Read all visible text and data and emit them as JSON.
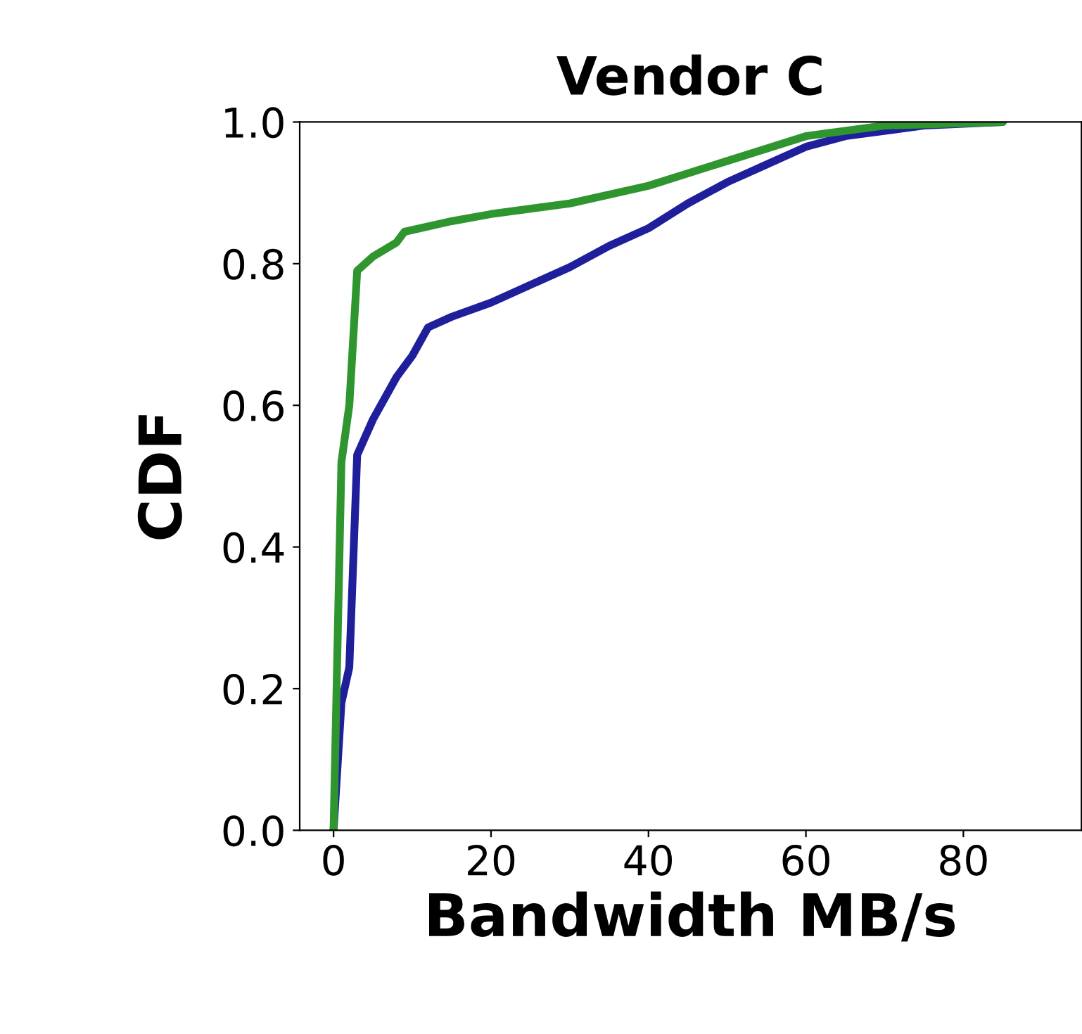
{
  "chart_data": {
    "type": "line",
    "title": "Vendor C",
    "xlabel": "Bandwidth MB/s",
    "ylabel": "CDF",
    "xlim": [
      -4.3,
      95
    ],
    "ylim": [
      0,
      1
    ],
    "xticks": [
      0,
      20,
      40,
      60,
      80
    ],
    "yticks": [
      {
        "value": 0,
        "label": "0.0"
      },
      {
        "value": 0.2,
        "label": "0.2"
      },
      {
        "value": 0.4,
        "label": "0.4"
      },
      {
        "value": 0.6,
        "label": "0.6"
      },
      {
        "value": 0.8,
        "label": "0.8"
      },
      {
        "value": 1,
        "label": "1.0"
      }
    ],
    "grid": false,
    "legend": false,
    "series": [
      {
        "color": "#1f1f9c",
        "x": [
          0,
          1,
          2,
          3,
          5,
          8,
          10,
          12,
          15,
          20,
          25,
          30,
          35,
          40,
          45,
          50,
          55,
          60,
          65,
          75,
          85
        ],
        "values": [
          0,
          0.18,
          0.23,
          0.53,
          0.58,
          0.64,
          0.67,
          0.71,
          0.725,
          0.745,
          0.77,
          0.795,
          0.825,
          0.85,
          0.885,
          0.915,
          0.94,
          0.965,
          0.98,
          0.995,
          1.0
        ]
      },
      {
        "color": "#2f962f",
        "x": [
          0,
          1,
          2,
          3,
          5,
          8,
          9,
          15,
          20,
          30,
          40,
          50,
          60,
          70,
          85
        ],
        "values": [
          0,
          0.52,
          0.6,
          0.79,
          0.81,
          0.83,
          0.845,
          0.86,
          0.87,
          0.885,
          0.91,
          0.945,
          0.98,
          0.995,
          1.0
        ]
      }
    ]
  }
}
